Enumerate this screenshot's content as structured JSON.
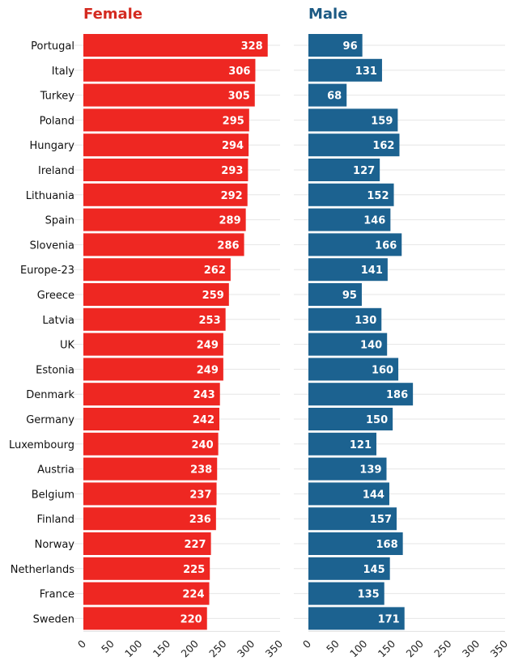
{
  "chart_data": {
    "type": "bar",
    "orientation": "horizontal",
    "categories": [
      "Portugal",
      "Italy",
      "Turkey",
      "Poland",
      "Hungary",
      "Ireland",
      "Lithuania",
      "Spain",
      "Slovenia",
      "Europe-23",
      "Greece",
      "Latvia",
      "UK",
      "Estonia",
      "Denmark",
      "Germany",
      "Luxembourg",
      "Austria",
      "Belgium",
      "Finland",
      "Norway",
      "Netherlands",
      "France",
      "Sweden"
    ],
    "panels": [
      {
        "title": "Female",
        "color": "#ee2722",
        "values": [
          328,
          306,
          305,
          295,
          294,
          293,
          292,
          289,
          286,
          262,
          259,
          253,
          249,
          249,
          243,
          242,
          240,
          238,
          237,
          236,
          227,
          225,
          224,
          220
        ]
      },
      {
        "title": "Male",
        "color": "#1c6290",
        "values": [
          96,
          131,
          68,
          159,
          162,
          127,
          152,
          146,
          166,
          141,
          95,
          130,
          140,
          160,
          186,
          150,
          121,
          139,
          144,
          157,
          168,
          145,
          135,
          171
        ]
      }
    ],
    "xlim": [
      0,
      350
    ],
    "xticks": [
      "0",
      "50",
      "100",
      "150",
      "200",
      "250",
      "300",
      "350"
    ],
    "xlabel": "",
    "ylabel": "",
    "grid": "horizontal",
    "legend": "none",
    "data_labels": "inside-end"
  }
}
